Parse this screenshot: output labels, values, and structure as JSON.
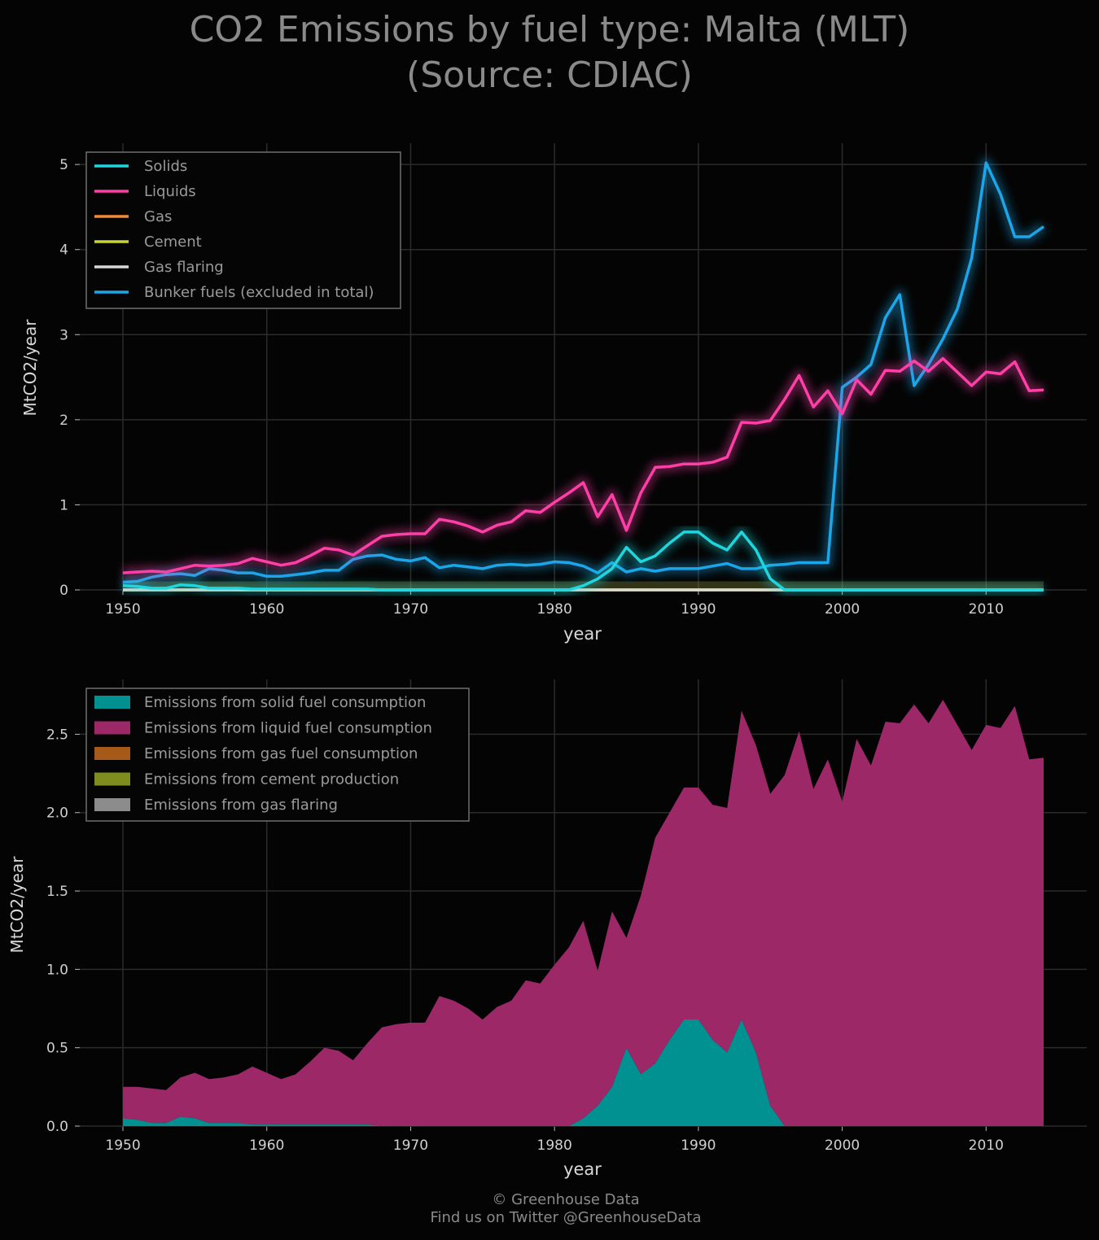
{
  "title_line1": "CO2 Emissions by fuel type: Malta (MLT)",
  "title_line2": "(Source: CDIAC)",
  "footer": {
    "line1": "© Greenhouse Data",
    "line2": "Find us on Twitter @GreenhouseData"
  },
  "colors": {
    "background": "#040404",
    "grid": "#2b2b2b",
    "solids": "#1ed6de",
    "liquids": "#ff3fa8",
    "gas": "#f08a35",
    "cement": "#c8d430",
    "flaring": "#d8d8d8",
    "bunker": "#1ba6ea",
    "area_solid": "#029191",
    "area_liquid": "#9c2868",
    "area_gas": "#a65a1a",
    "area_cement": "#7f8c1e",
    "area_flaring": "#8c8c8c"
  },
  "chart_data": [
    {
      "type": "line",
      "xlabel": "year",
      "ylabel": "MtCO2/year",
      "xlim": [
        1947,
        2017
      ],
      "ylim": [
        0,
        5.25
      ],
      "xticks": [
        "1950",
        "1960",
        "1970",
        "1980",
        "1990",
        "2000",
        "2010"
      ],
      "yticks": [
        "0",
        "1",
        "2",
        "3",
        "4",
        "5"
      ],
      "grid": true,
      "legend_position": "top-left",
      "x": [
        1950,
        1951,
        1952,
        1953,
        1954,
        1955,
        1956,
        1957,
        1958,
        1959,
        1960,
        1961,
        1962,
        1963,
        1964,
        1965,
        1966,
        1967,
        1968,
        1969,
        1970,
        1971,
        1972,
        1973,
        1974,
        1975,
        1976,
        1977,
        1978,
        1979,
        1980,
        1981,
        1982,
        1983,
        1984,
        1985,
        1986,
        1987,
        1988,
        1989,
        1990,
        1991,
        1992,
        1993,
        1994,
        1995,
        1996,
        1997,
        1998,
        1999,
        2000,
        2001,
        2002,
        2003,
        2004,
        2005,
        2006,
        2007,
        2008,
        2009,
        2010,
        2011,
        2012,
        2013,
        2014
      ],
      "series": [
        {
          "name": "Solids",
          "color_key": "solids",
          "values": [
            0.05,
            0.04,
            0.02,
            0.02,
            0.06,
            0.05,
            0.02,
            0.02,
            0.02,
            0.01,
            0.01,
            0.01,
            0.01,
            0.01,
            0.01,
            0.01,
            0.01,
            0.01,
            0,
            0,
            0,
            0,
            0,
            0,
            0,
            0,
            0,
            0,
            0,
            0,
            0,
            0,
            0.05,
            0.13,
            0.25,
            0.5,
            0.33,
            0.4,
            0.55,
            0.68,
            0.68,
            0.55,
            0.47,
            0.68,
            0.47,
            0.13,
            0,
            0,
            0,
            0,
            0,
            0,
            0,
            0,
            0,
            0,
            0,
            0,
            0,
            0,
            0,
            0,
            0,
            0,
            0
          ]
        },
        {
          "name": "Liquids",
          "color_key": "liquids",
          "values": [
            0.2,
            0.21,
            0.22,
            0.21,
            0.25,
            0.29,
            0.28,
            0.29,
            0.31,
            0.37,
            0.33,
            0.29,
            0.32,
            0.4,
            0.49,
            0.47,
            0.41,
            0.52,
            0.63,
            0.65,
            0.66,
            0.66,
            0.83,
            0.8,
            0.75,
            0.68,
            0.76,
            0.8,
            0.93,
            0.91,
            1.03,
            1.14,
            1.26,
            0.86,
            1.12,
            0.7,
            1.14,
            1.44,
            1.45,
            1.48,
            1.48,
            1.5,
            1.56,
            1.97,
            1.96,
            1.99,
            2.24,
            2.52,
            2.15,
            2.34,
            2.07,
            2.47,
            2.3,
            2.58,
            2.57,
            2.69,
            2.57,
            2.72,
            2.56,
            2.4,
            2.56,
            2.54,
            2.68,
            2.34,
            2.35
          ]
        },
        {
          "name": "Gas",
          "color_key": "gas",
          "values": [
            0,
            0,
            0,
            0,
            0,
            0,
            0,
            0,
            0,
            0,
            0,
            0,
            0,
            0,
            0,
            0,
            0,
            0,
            0,
            0,
            0,
            0,
            0,
            0,
            0,
            0,
            0,
            0,
            0,
            0,
            0,
            0,
            0,
            0,
            0,
            0,
            0,
            0,
            0,
            0,
            0,
            0,
            0,
            0,
            0,
            0,
            0,
            0,
            0,
            0,
            0,
            0,
            0,
            0,
            0,
            0,
            0,
            0,
            0,
            0,
            0,
            0,
            0,
            0,
            0
          ]
        },
        {
          "name": "Cement",
          "color_key": "cement",
          "values": [
            0,
            0,
            0,
            0,
            0,
            0,
            0,
            0,
            0,
            0,
            0,
            0,
            0,
            0,
            0,
            0,
            0,
            0,
            0,
            0,
            0,
            0,
            0,
            0,
            0,
            0,
            0,
            0,
            0,
            0,
            0,
            0,
            0,
            0,
            0,
            0,
            0,
            0,
            0,
            0,
            0,
            0,
            0,
            0,
            0,
            0,
            0,
            0,
            0,
            0,
            0,
            0,
            0,
            0,
            0,
            0,
            0,
            0,
            0,
            0,
            0,
            0,
            0,
            0,
            0
          ]
        },
        {
          "name": "Gas flaring",
          "color_key": "flaring",
          "values": [
            0,
            0,
            0,
            0,
            0,
            0,
            0,
            0,
            0,
            0,
            0,
            0,
            0,
            0,
            0,
            0,
            0,
            0,
            0,
            0,
            0,
            0,
            0,
            0,
            0,
            0,
            0,
            0,
            0,
            0,
            0,
            0,
            0,
            0,
            0,
            0,
            0,
            0,
            0,
            0,
            0,
            0,
            0,
            0,
            0,
            0,
            0,
            0,
            0,
            0,
            0,
            0,
            0,
            0,
            0,
            0,
            0,
            0,
            0,
            0,
            0,
            0,
            0,
            0,
            0
          ]
        },
        {
          "name": "Bunker fuels (excluded in total)",
          "color_key": "bunker",
          "values": [
            0.09,
            0.1,
            0.15,
            0.18,
            0.19,
            0.17,
            0.25,
            0.23,
            0.2,
            0.2,
            0.16,
            0.16,
            0.18,
            0.2,
            0.23,
            0.23,
            0.36,
            0.4,
            0.41,
            0.36,
            0.34,
            0.38,
            0.26,
            0.29,
            0.27,
            0.25,
            0.29,
            0.3,
            0.29,
            0.3,
            0.33,
            0.32,
            0.28,
            0.2,
            0.32,
            0.21,
            0.25,
            0.22,
            0.25,
            0.25,
            0.25,
            0.28,
            0.31,
            0.25,
            0.25,
            0.29,
            0.3,
            0.32,
            0.32,
            0.32,
            2.38,
            2.5,
            2.65,
            3.2,
            3.47,
            2.4,
            2.65,
            2.95,
            3.3,
            3.9,
            5.02,
            4.65,
            4.15,
            4.15,
            4.27
          ]
        }
      ]
    },
    {
      "type": "area",
      "stacked": true,
      "xlabel": "year",
      "ylabel": "MtCO2/year",
      "xlim": [
        1947,
        2017
      ],
      "ylim": [
        0,
        2.85
      ],
      "xticks": [
        "1950",
        "1960",
        "1970",
        "1980",
        "1990",
        "2000",
        "2010"
      ],
      "yticks": [
        "0.0",
        "0.5",
        "1.0",
        "1.5",
        "2.0",
        "2.5"
      ],
      "grid": true,
      "legend_position": "top-left",
      "x": [
        1950,
        1951,
        1952,
        1953,
        1954,
        1955,
        1956,
        1957,
        1958,
        1959,
        1960,
        1961,
        1962,
        1963,
        1964,
        1965,
        1966,
        1967,
        1968,
        1969,
        1970,
        1971,
        1972,
        1973,
        1974,
        1975,
        1976,
        1977,
        1978,
        1979,
        1980,
        1981,
        1982,
        1983,
        1984,
        1985,
        1986,
        1987,
        1988,
        1989,
        1990,
        1991,
        1992,
        1993,
        1994,
        1995,
        1996,
        1997,
        1998,
        1999,
        2000,
        2001,
        2002,
        2003,
        2004,
        2005,
        2006,
        2007,
        2008,
        2009,
        2010,
        2011,
        2012,
        2013,
        2014
      ],
      "series": [
        {
          "name": "Emissions from solid fuel consumption",
          "color_key": "area_solid",
          "values": [
            0.05,
            0.04,
            0.02,
            0.02,
            0.06,
            0.05,
            0.02,
            0.02,
            0.02,
            0.01,
            0.01,
            0.01,
            0.01,
            0.01,
            0.01,
            0.01,
            0.01,
            0.01,
            0,
            0,
            0,
            0,
            0,
            0,
            0,
            0,
            0,
            0,
            0,
            0,
            0,
            0,
            0.05,
            0.13,
            0.25,
            0.5,
            0.33,
            0.4,
            0.55,
            0.68,
            0.68,
            0.55,
            0.47,
            0.68,
            0.47,
            0.13,
            0,
            0,
            0,
            0,
            0,
            0,
            0,
            0,
            0,
            0,
            0,
            0,
            0,
            0,
            0,
            0,
            0,
            0,
            0
          ]
        },
        {
          "name": "Emissions from liquid fuel consumption",
          "color_key": "area_liquid",
          "values": [
            0.2,
            0.21,
            0.22,
            0.21,
            0.25,
            0.29,
            0.28,
            0.29,
            0.31,
            0.37,
            0.33,
            0.29,
            0.32,
            0.4,
            0.49,
            0.47,
            0.41,
            0.52,
            0.63,
            0.65,
            0.66,
            0.66,
            0.83,
            0.8,
            0.75,
            0.68,
            0.76,
            0.8,
            0.93,
            0.91,
            1.03,
            1.14,
            1.26,
            0.86,
            1.12,
            0.7,
            1.14,
            1.44,
            1.45,
            1.48,
            1.48,
            1.5,
            1.56,
            1.97,
            1.96,
            1.99,
            2.24,
            2.52,
            2.15,
            2.34,
            2.07,
            2.47,
            2.3,
            2.58,
            2.57,
            2.69,
            2.57,
            2.72,
            2.56,
            2.4,
            2.56,
            2.54,
            2.68,
            2.34,
            2.35
          ]
        },
        {
          "name": "Emissions from gas fuel consumption",
          "color_key": "area_gas",
          "values": [
            0,
            0,
            0,
            0,
            0,
            0,
            0,
            0,
            0,
            0,
            0,
            0,
            0,
            0,
            0,
            0,
            0,
            0,
            0,
            0,
            0,
            0,
            0,
            0,
            0,
            0,
            0,
            0,
            0,
            0,
            0,
            0,
            0,
            0,
            0,
            0,
            0,
            0,
            0,
            0,
            0,
            0,
            0,
            0,
            0,
            0,
            0,
            0,
            0,
            0,
            0,
            0,
            0,
            0,
            0,
            0,
            0,
            0,
            0,
            0,
            0,
            0,
            0,
            0,
            0
          ]
        },
        {
          "name": "Emissions from cement production",
          "color_key": "area_cement",
          "values": [
            0,
            0,
            0,
            0,
            0,
            0,
            0,
            0,
            0,
            0,
            0,
            0,
            0,
            0,
            0,
            0,
            0,
            0,
            0,
            0,
            0,
            0,
            0,
            0,
            0,
            0,
            0,
            0,
            0,
            0,
            0,
            0,
            0,
            0,
            0,
            0,
            0,
            0,
            0,
            0,
            0,
            0,
            0,
            0,
            0,
            0,
            0,
            0,
            0,
            0,
            0,
            0,
            0,
            0,
            0,
            0,
            0,
            0,
            0,
            0,
            0,
            0,
            0,
            0,
            0
          ]
        },
        {
          "name": "Emissions from gas flaring",
          "color_key": "area_flaring",
          "values": [
            0,
            0,
            0,
            0,
            0,
            0,
            0,
            0,
            0,
            0,
            0,
            0,
            0,
            0,
            0,
            0,
            0,
            0,
            0,
            0,
            0,
            0,
            0,
            0,
            0,
            0,
            0,
            0,
            0,
            0,
            0,
            0,
            0,
            0,
            0,
            0,
            0,
            0,
            0,
            0,
            0,
            0,
            0,
            0,
            0,
            0,
            0,
            0,
            0,
            0,
            0,
            0,
            0,
            0,
            0,
            0,
            0,
            0,
            0,
            0,
            0,
            0,
            0,
            0,
            0
          ]
        }
      ]
    }
  ]
}
